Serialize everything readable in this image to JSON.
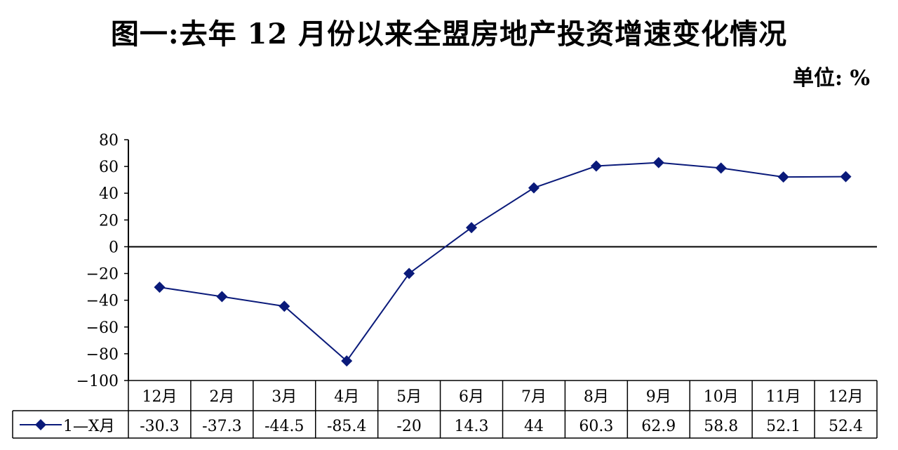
{
  "title": "图一:去年 12 月份以来全盟房地产投资增速变化情况",
  "unit_label": "单位: %",
  "colors": {
    "series": "#0a1a7a",
    "axis": "#000000"
  },
  "chart_data": {
    "type": "line",
    "categories": [
      "12月",
      "2月",
      "3月",
      "4月",
      "5月",
      "6月",
      "7月",
      "8月",
      "9月",
      "10月",
      "11月",
      "12月"
    ],
    "series": [
      {
        "name": "1—X月",
        "values": [
          -30.3,
          -37.3,
          -44.5,
          -85.4,
          -20,
          14.3,
          44,
          60.3,
          62.9,
          58.8,
          52.1,
          52.4
        ]
      }
    ],
    "table_values": [
      "-30.3",
      "-37.3",
      "-44.5",
      "-85.4",
      "-20",
      "14.3",
      "44",
      "60.3",
      "62.9",
      "58.8",
      "52.1",
      "52.4"
    ],
    "yticks": [
      "80",
      "60",
      "40",
      "20",
      "0",
      "-20",
      "-40",
      "-60",
      "-80",
      "-100"
    ],
    "ylim": [
      -100,
      80
    ],
    "data_table": true,
    "grid": false,
    "legend": "bottom-left (in data table)"
  }
}
